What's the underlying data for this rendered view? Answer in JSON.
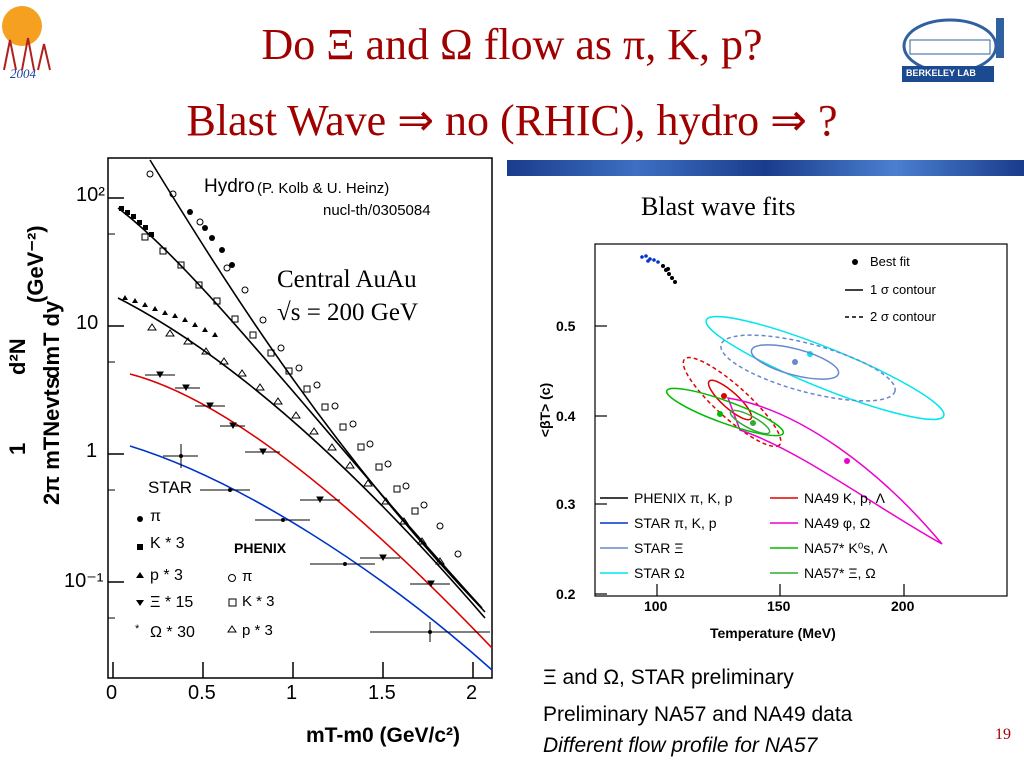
{
  "slide": {
    "title_line1": "Do Ξ and Ω flow as π, K, p?",
    "title_line2": "Blast Wave ⇒ no (RHIC), hydro ⇒ ?",
    "logo_left_text": "2004",
    "logo_right_text": "BERKELEY LAB",
    "page_number": "19"
  },
  "left_plot": {
    "ylabel_fraction_top": "1",
    "ylabel_fraction_bottom": "2π mTNevts",
    "ylabel_rhs_top": "d²N",
    "ylabel_rhs_bottom": "dmT dy",
    "ylabel_units": "(GeV⁻²)",
    "xlabel": "mT-m0 (GeV/c²)",
    "hydro_label": "Hydro",
    "hydro_ref": "(P. Kolb & U. Heinz)",
    "hydro_arxiv": "nucl-th/0305084",
    "central_line1": "Central AuAu",
    "central_line2": "√s = 200 GeV",
    "y_ticks": [
      "10²",
      "10",
      "1",
      "10⁻¹"
    ],
    "x_ticks": [
      "0",
      "0.5",
      "1",
      "1.5",
      "2"
    ],
    "star_title": "STAR",
    "star_legend": [
      "π",
      "K * 3",
      "p * 3",
      "Ξ * 15",
      "Ω * 30"
    ],
    "phenix_title": "PHENIX",
    "phenix_legend": [
      "π",
      "K * 3",
      "p * 3"
    ]
  },
  "right_plot": {
    "title": "Blast wave fits",
    "xlabel": "Temperature (MeV)",
    "ylabel": "<βT> (c)",
    "x_ticks": [
      "100",
      "150",
      "200"
    ],
    "y_ticks": [
      "0.5",
      "0.4",
      "0.3",
      "0.2"
    ],
    "top_legend": [
      "Best fit",
      "1 σ contour",
      "2 σ contour"
    ],
    "legend_left": [
      "PHENIX  π, K, p",
      "STAR  π, K, p",
      "STAR  Ξ",
      "STAR  Ω"
    ],
    "legend_right": [
      "NA49 K, p, Λ",
      "NA49  φ, Ω",
      "NA57* K⁰s, Λ",
      "NA57* Ξ, Ω"
    ],
    "colors": {
      "phenix": "#000000",
      "star_pikp": "#0033cc",
      "star_xi": "#6688cc",
      "star_omega": "#00e5ee",
      "na49_kpl": "#dd0000",
      "na49_phiomega": "#ee00cc",
      "na57_ksl": "#00bb00",
      "na57_xiomega": "#33aa33"
    }
  },
  "caption": {
    "line1": "Ξ and Ω, STAR preliminary",
    "line2": "Preliminary NA57 and NA49 data",
    "line3": "Different flow profile for NA57"
  }
}
